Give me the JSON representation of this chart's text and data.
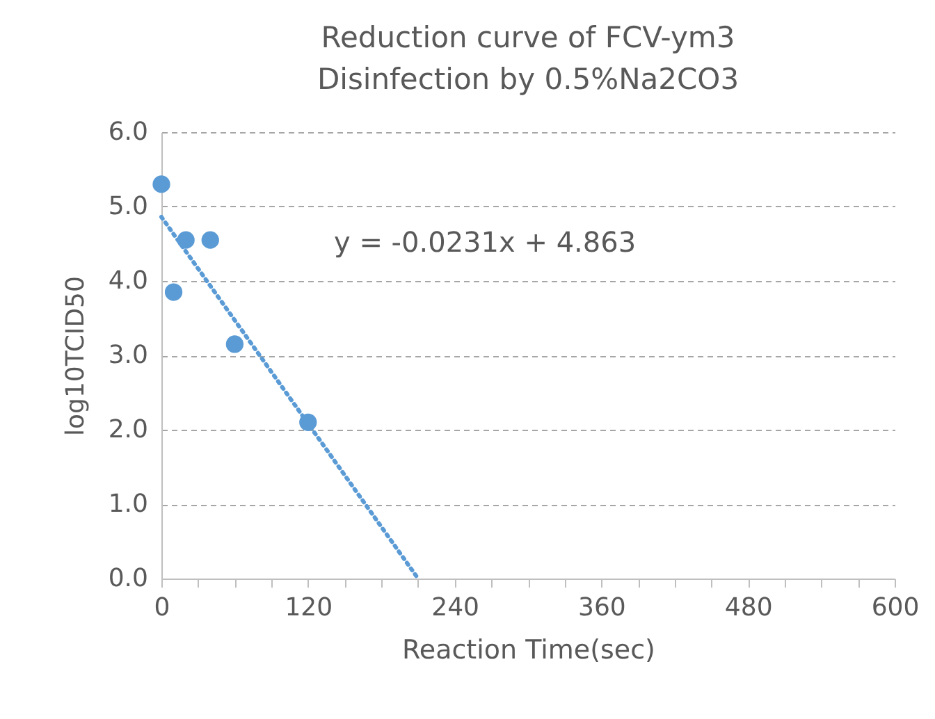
{
  "chart_data": {
    "type": "scatter",
    "title": "Reduction curve of FCV-ym3\nDisinfection by 0.5%Na2CO3",
    "xlabel": "Reaction Time(sec)",
    "ylabel": "log10TCID50",
    "x": [
      0,
      10,
      20,
      40,
      60,
      120
    ],
    "series": [
      {
        "color": "#5b9bd5",
        "values": [
          5.3,
          3.85,
          4.55,
          4.55,
          3.15,
          2.1
        ],
        "marker": "circle"
      },
      {
        "type": "line",
        "color": "#5b9bd5",
        "x": [
          0,
          210
        ],
        "values": [
          4.86,
          0
        ],
        "line_style": "dotted"
      }
    ],
    "annotations": [
      "y = -0.0231x + 4.863"
    ],
    "xlim": [
      0,
      600
    ],
    "xticks": [
      0,
      {
        "value": 30,
        "label": null
      },
      {
        "value": 60,
        "label": null
      },
      {
        "value": 90,
        "label": null
      },
      120,
      {
        "value": 150,
        "label": null
      },
      {
        "value": 180,
        "label": null
      },
      {
        "value": 210,
        "label": null
      },
      240,
      {
        "value": 270,
        "label": null
      },
      {
        "value": 300,
        "label": null
      },
      {
        "value": 330,
        "label": null
      },
      360,
      {
        "value": 390,
        "label": null
      },
      {
        "value": 420,
        "label": null
      },
      {
        "value": 450,
        "label": null
      },
      480,
      {
        "value": 510,
        "label": null
      },
      {
        "value": 540,
        "label": null
      },
      {
        "value": 570,
        "label": null
      },
      600
    ],
    "ylim": [
      0,
      6
    ],
    "yticks": [
      {
        "value": 0,
        "label": "0.0"
      },
      {
        "value": 1,
        "label": "1.0"
      },
      {
        "value": 2,
        "label": "2.0"
      },
      {
        "value": 3,
        "label": "3.0"
      },
      {
        "value": 4,
        "label": "4.0"
      },
      {
        "value": 5,
        "label": "5.0"
      },
      {
        "value": 6,
        "label": "6.0"
      }
    ],
    "grid": "y"
  }
}
